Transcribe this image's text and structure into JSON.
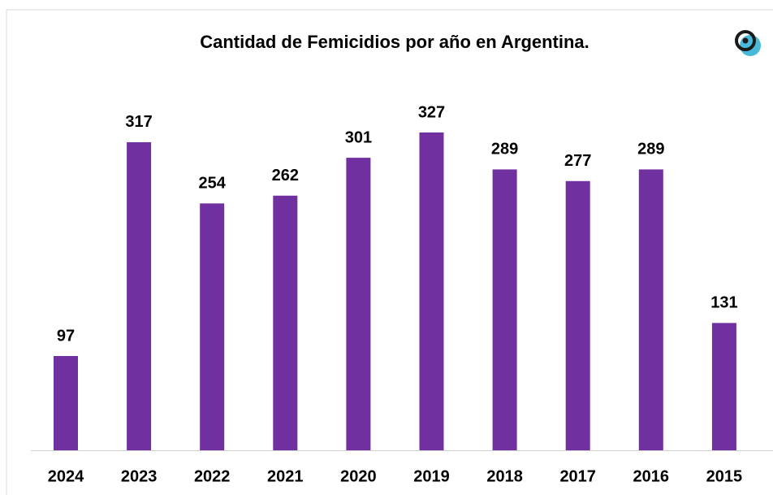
{
  "chart_data": {
    "type": "bar",
    "title": "Cantidad de Femicidios por año en Argentina.",
    "categories": [
      "2024",
      "2023",
      "2022",
      "2021",
      "2020",
      "2019",
      "2018",
      "2017",
      "2016",
      "2015"
    ],
    "values": [
      97,
      317,
      254,
      262,
      301,
      327,
      289,
      277,
      289,
      131
    ],
    "color": "#7030a0"
  }
}
